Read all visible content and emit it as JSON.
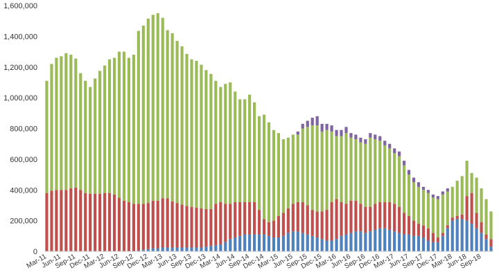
{
  "chart_data": {
    "type": "bar",
    "stacked": true,
    "title": "",
    "xlabel": "",
    "ylabel": "",
    "ylim": [
      0,
      1600000
    ],
    "yticks": [
      0,
      200000,
      400000,
      600000,
      800000,
      1000000,
      1200000,
      1400000,
      1600000
    ],
    "ytick_labels": [
      "0",
      "200,000",
      "400,000",
      "600,000",
      "800,000",
      "1,000,000",
      "1,200,000",
      "1,400,000",
      "1,600,000"
    ],
    "grid": false,
    "legend": "none",
    "x_start": "2011-03",
    "x_end": "2018-11",
    "xtick_labels": [
      "Mar-11",
      "Jun-11",
      "Sep-11",
      "Dec-11",
      "Mar-12",
      "Jun-12",
      "Sep-12",
      "Dec-12",
      "Mar-13",
      "Jun-13",
      "Sep-13",
      "Dec-13",
      "Mar-14",
      "Jun-14",
      "Sep-14",
      "Dec-14",
      "Mar-15",
      "Jun-15",
      "Sep-15",
      "Dec-15",
      "Mar-16",
      "Jun-16",
      "Sep-16",
      "Dec-16",
      "Mar-17",
      "Jun-17",
      "Sep-17",
      "Dec-17",
      "Mar-18",
      "Jun-18",
      "Sep-18"
    ],
    "categories": [
      "Mar-11",
      "Apr-11",
      "May-11",
      "Jun-11",
      "Jul-11",
      "Aug-11",
      "Sep-11",
      "Oct-11",
      "Nov-11",
      "Dec-11",
      "Jan-12",
      "Feb-12",
      "Mar-12",
      "Apr-12",
      "May-12",
      "Jun-12",
      "Jul-12",
      "Aug-12",
      "Sep-12",
      "Oct-12",
      "Nov-12",
      "Dec-12",
      "Jan-13",
      "Feb-13",
      "Mar-13",
      "Apr-13",
      "May-13",
      "Jun-13",
      "Jul-13",
      "Aug-13",
      "Sep-13",
      "Oct-13",
      "Nov-13",
      "Dec-13",
      "Jan-14",
      "Feb-14",
      "Mar-14",
      "Apr-14",
      "May-14",
      "Jun-14",
      "Jul-14",
      "Aug-14",
      "Sep-14",
      "Oct-14",
      "Nov-14",
      "Dec-14",
      "Jan-15",
      "Feb-15",
      "Mar-15",
      "Apr-15",
      "May-15",
      "Jun-15",
      "Jul-15",
      "Aug-15",
      "Sep-15",
      "Oct-15",
      "Nov-15",
      "Dec-15",
      "Jan-16",
      "Feb-16",
      "Mar-16",
      "Apr-16",
      "May-16",
      "Jun-16",
      "Jul-16",
      "Aug-16",
      "Sep-16",
      "Oct-16",
      "Nov-16",
      "Dec-16",
      "Jan-17",
      "Feb-17",
      "Mar-17",
      "Apr-17",
      "May-17",
      "Jun-17",
      "Jul-17",
      "Aug-17",
      "Sep-17",
      "Oct-17",
      "Nov-17",
      "Dec-17",
      "Jan-18",
      "Feb-18",
      "Mar-18",
      "Apr-18",
      "May-18",
      "Jun-18",
      "Jul-18",
      "Aug-18",
      "Sep-18",
      "Oct-18",
      "Nov-18"
    ],
    "series": [
      {
        "color": "#4f81bd",
        "values": [
          0,
          0,
          0,
          0,
          0,
          0,
          0,
          0,
          0,
          0,
          0,
          0,
          0,
          0,
          0,
          0,
          0,
          0,
          0,
          5000,
          10000,
          15000,
          20000,
          20000,
          25000,
          25000,
          25000,
          25000,
          25000,
          25000,
          25000,
          25000,
          25000,
          30000,
          35000,
          40000,
          45000,
          60000,
          80000,
          90000,
          100000,
          110000,
          110000,
          110000,
          110000,
          110000,
          100000,
          90000,
          90000,
          100000,
          120000,
          130000,
          130000,
          120000,
          110000,
          100000,
          90000,
          80000,
          70000,
          70000,
          80000,
          100000,
          110000,
          120000,
          130000,
          130000,
          120000,
          130000,
          140000,
          150000,
          150000,
          140000,
          130000,
          120000,
          110000,
          110000,
          100000,
          100000,
          90000,
          70000,
          60000,
          60000,
          100000,
          150000,
          200000,
          210000,
          210000,
          200000,
          180000,
          150000,
          120000,
          80000,
          30000
        ]
      },
      {
        "color": "#c0504d",
        "values": [
          380000,
          395000,
          400000,
          400000,
          400000,
          410000,
          415000,
          400000,
          380000,
          375000,
          375000,
          375000,
          380000,
          380000,
          370000,
          350000,
          330000,
          320000,
          310000,
          305000,
          300000,
          300000,
          310000,
          310000,
          320000,
          320000,
          300000,
          290000,
          280000,
          270000,
          265000,
          260000,
          255000,
          245000,
          240000,
          270000,
          275000,
          250000,
          230000,
          230000,
          220000,
          210000,
          210000,
          210000,
          160000,
          100000,
          90000,
          110000,
          140000,
          150000,
          160000,
          180000,
          190000,
          200000,
          190000,
          170000,
          170000,
          180000,
          200000,
          250000,
          260000,
          220000,
          200000,
          210000,
          200000,
          180000,
          170000,
          160000,
          170000,
          170000,
          170000,
          180000,
          180000,
          170000,
          140000,
          120000,
          100000,
          80000,
          80000,
          80000,
          60000,
          30000,
          20000,
          20000,
          20000,
          20000,
          30000,
          160000,
          200000,
          100000,
          70000,
          30000,
          50000
        ]
      },
      {
        "color": "#9bbb59",
        "values": [
          730000,
          825000,
          860000,
          870000,
          890000,
          870000,
          840000,
          760000,
          730000,
          695000,
          750000,
          800000,
          830000,
          870000,
          890000,
          950000,
          970000,
          940000,
          970000,
          1125000,
          1160000,
          1200000,
          1210000,
          1220000,
          1175000,
          1095000,
          1095000,
          1055000,
          1030000,
          990000,
          960000,
          955000,
          935000,
          905000,
          880000,
          800000,
          750000,
          780000,
          790000,
          720000,
          670000,
          670000,
          700000,
          650000,
          610000,
          680000,
          650000,
          590000,
          540000,
          480000,
          460000,
          450000,
          440000,
          480000,
          510000,
          550000,
          560000,
          520000,
          520000,
          460000,
          410000,
          430000,
          460000,
          410000,
          400000,
          400000,
          410000,
          450000,
          420000,
          400000,
          370000,
          350000,
          330000,
          330000,
          310000,
          270000,
          250000,
          240000,
          230000,
          230000,
          230000,
          250000,
          250000,
          220000,
          200000,
          230000,
          250000,
          230000,
          130000,
          230000,
          220000,
          230000,
          180000
        ]
      },
      {
        "color": "#8064a2",
        "values": [
          0,
          0,
          0,
          0,
          0,
          0,
          0,
          0,
          0,
          0,
          0,
          0,
          0,
          0,
          0,
          0,
          0,
          0,
          0,
          0,
          0,
          0,
          0,
          0,
          0,
          0,
          0,
          0,
          0,
          0,
          0,
          0,
          0,
          0,
          0,
          0,
          0,
          0,
          0,
          0,
          0,
          0,
          0,
          0,
          0,
          0,
          0,
          0,
          0,
          0,
          0,
          0,
          20000,
          30000,
          40000,
          50000,
          60000,
          50000,
          40000,
          40000,
          40000,
          40000,
          40000,
          30000,
          30000,
          30000,
          30000,
          30000,
          30000,
          30000,
          30000,
          30000,
          30000,
          30000,
          30000,
          30000,
          30000,
          30000,
          20000,
          20000,
          20000,
          20000,
          20000,
          20000,
          0,
          0,
          0,
          0,
          0,
          0,
          0,
          0,
          0
        ]
      }
    ]
  }
}
